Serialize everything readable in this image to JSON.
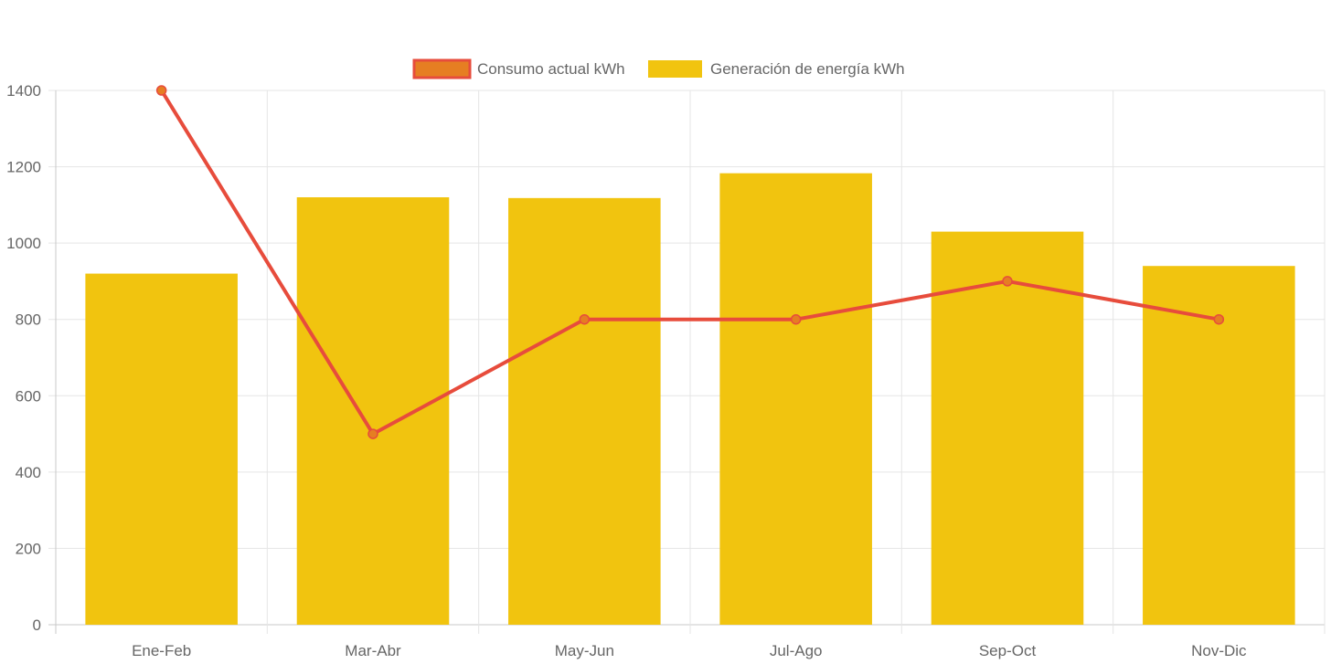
{
  "chart_data": {
    "type": "bar",
    "categories": [
      "Ene-Feb",
      "Mar-Abr",
      "May-Jun",
      "Jul-Ago",
      "Sep-Oct",
      "Nov-Dic"
    ],
    "series": [
      {
        "name": "Consumo actual kWh",
        "type": "line",
        "values": [
          1400,
          500,
          800,
          800,
          900,
          800
        ],
        "color": "#e74c3c",
        "point_color": "#e67e22"
      },
      {
        "name": "Generación de energía kWh",
        "type": "bar",
        "values": [
          920,
          1120,
          1118,
          1183,
          1030,
          940
        ],
        "color": "#f1c40f"
      }
    ],
    "y_ticks": [
      "0",
      "200",
      "400",
      "600",
      "800",
      "1000",
      "1200",
      "1400"
    ],
    "ylim": [
      0,
      1400
    ],
    "grid": true,
    "legend_position": "top"
  }
}
